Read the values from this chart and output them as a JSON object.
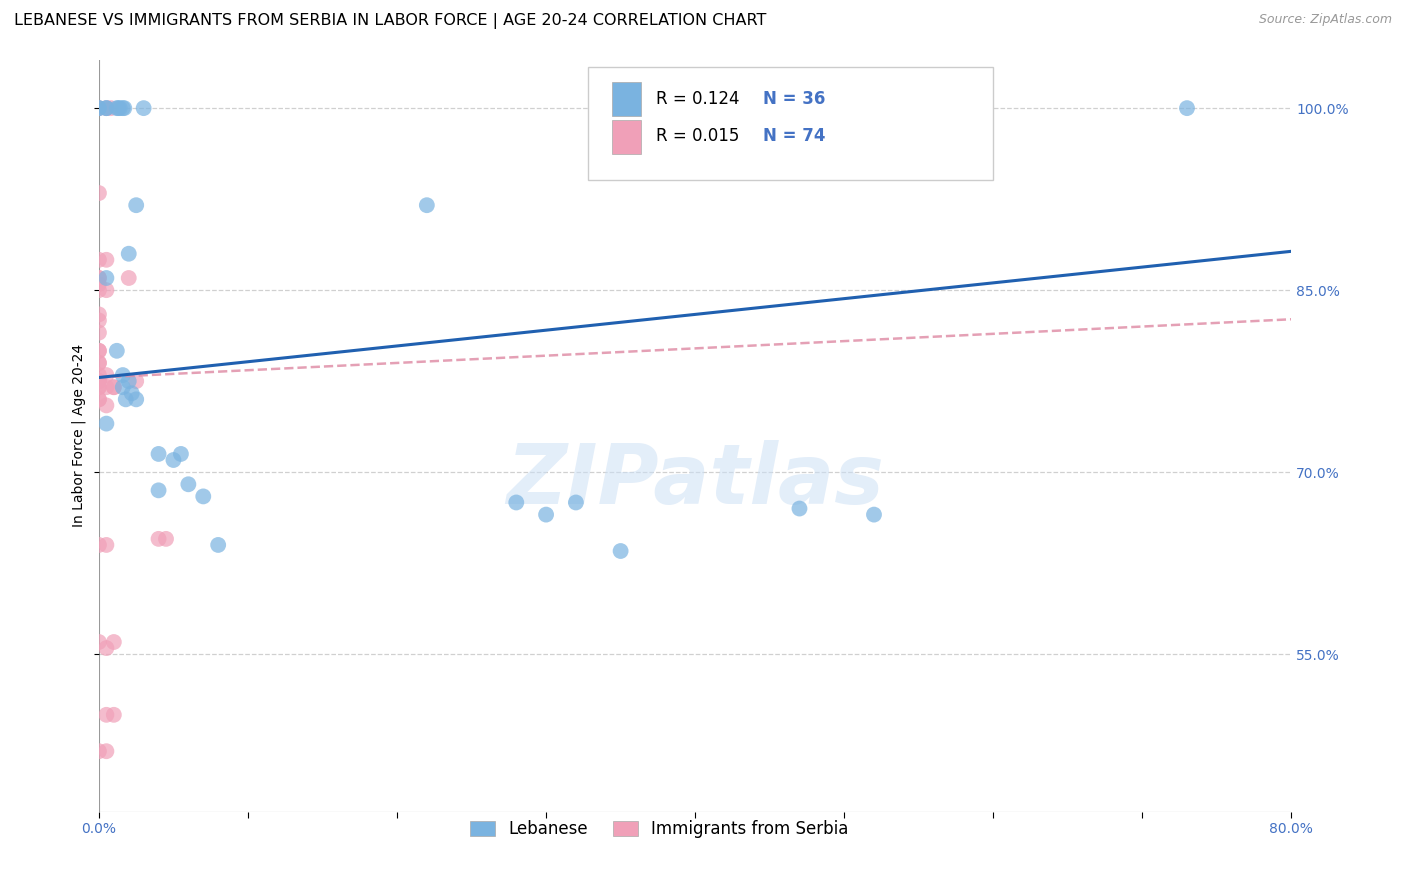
{
  "title": "LEBANESE VS IMMIGRANTS FROM SERBIA IN LABOR FORCE | AGE 20-24 CORRELATION CHART",
  "source": "Source: ZipAtlas.com",
  "ylabel": "In Labor Force | Age 20-24",
  "xlim": [
    0.0,
    0.8
  ],
  "ylim": [
    0.42,
    1.04
  ],
  "xticks": [
    0.0,
    0.1,
    0.2,
    0.3,
    0.4,
    0.5,
    0.6,
    0.7,
    0.8
  ],
  "xticklabels": [
    "0.0%",
    "",
    "",
    "",
    "",
    "",
    "",
    "",
    "80.0%"
  ],
  "yticks": [
    0.55,
    0.7,
    0.85,
    1.0
  ],
  "yticklabels": [
    "55.0%",
    "70.0%",
    "85.0%",
    "100.0%"
  ],
  "grid_color": "#d0d0d0",
  "background_color": "#ffffff",
  "watermark_text": "ZIPatlas",
  "blue_color": "#7ab3e0",
  "pink_color": "#f0a0b8",
  "blue_line_color": "#2060b0",
  "pink_line_color": "#e090a8",
  "axis_color": "#4472c4",
  "title_fontsize": 11.5,
  "axis_label_fontsize": 10,
  "tick_fontsize": 10,
  "legend_fontsize": 12,
  "source_fontsize": 9,
  "legend_r_color": "#000000",
  "legend_n_color": "#4472c4",
  "blue_scatter": [
    [
      0.0,
      1.0
    ],
    [
      0.0,
      1.0
    ],
    [
      0.005,
      1.0
    ],
    [
      0.005,
      1.0
    ],
    [
      0.012,
      1.0
    ],
    [
      0.013,
      1.0
    ],
    [
      0.014,
      1.0
    ],
    [
      0.016,
      1.0
    ],
    [
      0.017,
      1.0
    ],
    [
      0.03,
      1.0
    ],
    [
      0.005,
      0.86
    ],
    [
      0.005,
      0.74
    ],
    [
      0.012,
      0.8
    ],
    [
      0.016,
      0.78
    ],
    [
      0.016,
      0.77
    ],
    [
      0.018,
      0.76
    ],
    [
      0.02,
      0.775
    ],
    [
      0.022,
      0.765
    ],
    [
      0.025,
      0.76
    ],
    [
      0.02,
      0.88
    ],
    [
      0.025,
      0.92
    ],
    [
      0.04,
      0.685
    ],
    [
      0.04,
      0.715
    ],
    [
      0.05,
      0.71
    ],
    [
      0.055,
      0.715
    ],
    [
      0.06,
      0.69
    ],
    [
      0.07,
      0.68
    ],
    [
      0.08,
      0.64
    ],
    [
      0.22,
      0.92
    ],
    [
      0.28,
      0.675
    ],
    [
      0.3,
      0.665
    ],
    [
      0.32,
      0.675
    ],
    [
      0.35,
      0.635
    ],
    [
      0.47,
      0.67
    ],
    [
      0.52,
      0.665
    ],
    [
      0.73,
      1.0
    ]
  ],
  "pink_scatter": [
    [
      0.0,
      1.0
    ],
    [
      0.005,
      1.0
    ],
    [
      0.008,
      1.0
    ],
    [
      0.0,
      0.93
    ],
    [
      0.0,
      0.875
    ],
    [
      0.005,
      0.875
    ],
    [
      0.0,
      0.86
    ],
    [
      0.0,
      0.86
    ],
    [
      0.0,
      0.855
    ],
    [
      0.0,
      0.85
    ],
    [
      0.005,
      0.85
    ],
    [
      0.0,
      0.83
    ],
    [
      0.0,
      0.825
    ],
    [
      0.0,
      0.815
    ],
    [
      0.0,
      0.8
    ],
    [
      0.0,
      0.8
    ],
    [
      0.0,
      0.79
    ],
    [
      0.0,
      0.79
    ],
    [
      0.0,
      0.78
    ],
    [
      0.005,
      0.78
    ],
    [
      0.0,
      0.775
    ],
    [
      0.0,
      0.775
    ],
    [
      0.0,
      0.775
    ],
    [
      0.0,
      0.77
    ],
    [
      0.0,
      0.77
    ],
    [
      0.005,
      0.77
    ],
    [
      0.01,
      0.77
    ],
    [
      0.01,
      0.77
    ],
    [
      0.0,
      0.76
    ],
    [
      0.0,
      0.76
    ],
    [
      0.005,
      0.755
    ],
    [
      0.0,
      0.64
    ],
    [
      0.005,
      0.64
    ],
    [
      0.0,
      0.56
    ],
    [
      0.005,
      0.555
    ],
    [
      0.01,
      0.56
    ],
    [
      0.02,
      0.86
    ],
    [
      0.025,
      0.775
    ],
    [
      0.04,
      0.645
    ],
    [
      0.045,
      0.645
    ],
    [
      0.0,
      0.47
    ],
    [
      0.005,
      0.47
    ],
    [
      0.005,
      0.5
    ],
    [
      0.01,
      0.5
    ]
  ],
  "blue_line_x": [
    0.0,
    0.8
  ],
  "blue_line_y": [
    0.778,
    0.882
  ],
  "pink_line_x": [
    0.0,
    0.8
  ],
  "pink_line_y": [
    0.778,
    0.826
  ]
}
